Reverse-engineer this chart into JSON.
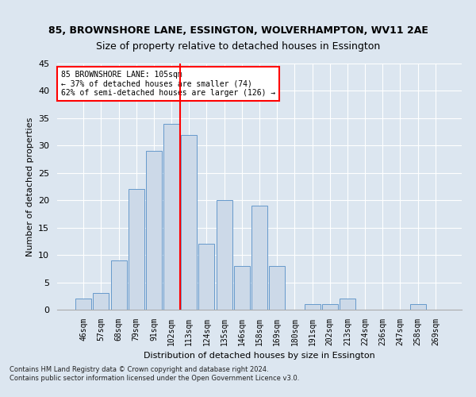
{
  "title_line1": "85, BROWNSHORE LANE, ESSINGTON, WOLVERHAMPTON, WV11 2AE",
  "title_line2": "Size of property relative to detached houses in Essington",
  "xlabel": "Distribution of detached houses by size in Essington",
  "ylabel": "Number of detached properties",
  "footnote1": "Contains HM Land Registry data © Crown copyright and database right 2024.",
  "footnote2": "Contains public sector information licensed under the Open Government Licence v3.0.",
  "bar_labels": [
    "46sqm",
    "57sqm",
    "68sqm",
    "79sqm",
    "91sqm",
    "102sqm",
    "113sqm",
    "124sqm",
    "135sqm",
    "146sqm",
    "158sqm",
    "169sqm",
    "180sqm",
    "191sqm",
    "202sqm",
    "213sqm",
    "224sqm",
    "236sqm",
    "247sqm",
    "258sqm",
    "269sqm"
  ],
  "bar_values": [
    2,
    3,
    9,
    22,
    29,
    34,
    32,
    12,
    20,
    8,
    19,
    8,
    0,
    1,
    1,
    2,
    0,
    0,
    0,
    1,
    0
  ],
  "bar_color": "#ccd9e8",
  "bar_edge_color": "#6699cc",
  "vline_x": 5.5,
  "vline_color": "red",
  "ylim": [
    0,
    45
  ],
  "yticks": [
    0,
    5,
    10,
    15,
    20,
    25,
    30,
    35,
    40,
    45
  ],
  "annotation_text": "85 BROWNSHORE LANE: 105sqm\n← 37% of detached houses are smaller (74)\n62% of semi-detached houses are larger (126) →",
  "annotation_box_facecolor": "white",
  "annotation_box_edgecolor": "red",
  "background_color": "#dce6f0",
  "plot_bg_color": "#dce6f0",
  "title1_fontsize": 9,
  "title2_fontsize": 9,
  "ylabel_fontsize": 8,
  "xlabel_fontsize": 8,
  "tick_fontsize": 7,
  "annot_fontsize": 7,
  "footnote_fontsize": 6
}
